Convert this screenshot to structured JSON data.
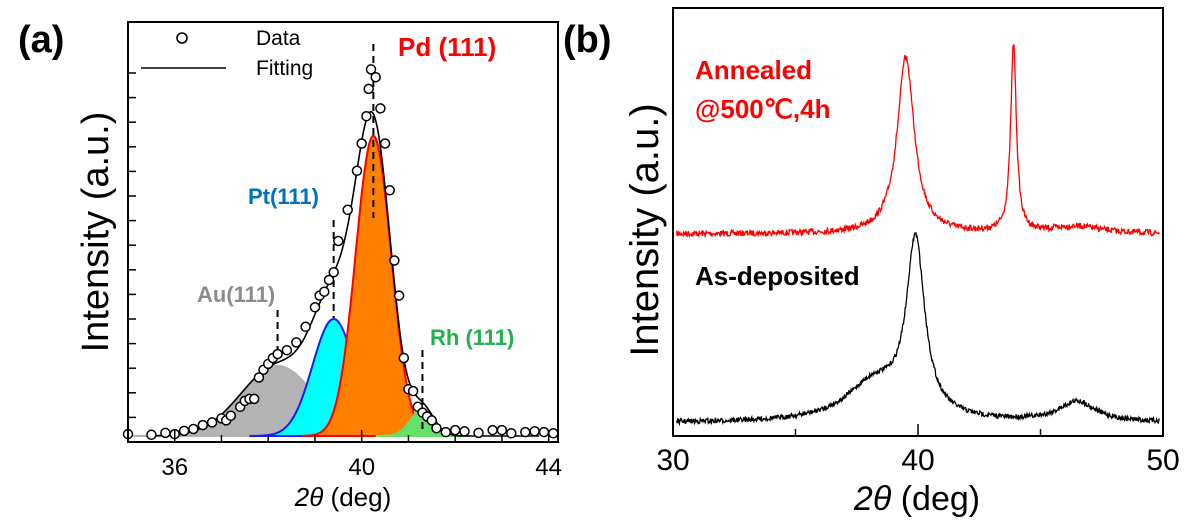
{
  "colors": {
    "au": "#b3b3b3",
    "pt": "#00ffff",
    "pt_line": "#1a1aff",
    "pd": "#ff7f00",
    "pd_line": "#ff0000",
    "rh": "#66e066",
    "annealed": "#ff0000",
    "asdeposited": "#000000",
    "au_text": "#8c8c8c",
    "pt_text": "#0070c0",
    "pd_text": "#ff0000",
    "rh_text": "#22b14c"
  },
  "chart_data": [
    {
      "type": "scatter",
      "panel_label": "(a)",
      "xlabel_sym": "2θ",
      "xlabel_unit": " (deg)",
      "ylabel": "Intensity (a.u.)",
      "xlim": [
        35.0,
        44.2
      ],
      "ylim": [
        0,
        100
      ],
      "xticks": [
        36,
        40,
        44
      ],
      "legend": {
        "data": "Data",
        "fit": "Fitting",
        "placement": "top-left"
      },
      "peaks": [
        {
          "label": "Au(111)",
          "center": 38.2,
          "amplitude": 18,
          "sigma": 0.78,
          "marker_x": 38.2
        },
        {
          "label": "Pt(111)",
          "center": 39.4,
          "amplitude": 30,
          "sigma": 0.45,
          "marker_x": 39.4
        },
        {
          "label": "Pd (111)",
          "center": 40.25,
          "amplitude": 77,
          "sigma": 0.38,
          "marker_x": 40.25
        },
        {
          "label": "Rh (111)",
          "center": 41.3,
          "amplitude": 7,
          "sigma": 0.25,
          "marker_x": 41.3
        }
      ],
      "data_points": [
        [
          35.0,
          0.5
        ],
        [
          35.5,
          0.3
        ],
        [
          35.8,
          0.8
        ],
        [
          36.0,
          0.5
        ],
        [
          36.2,
          1.3
        ],
        [
          36.4,
          1.8
        ],
        [
          36.6,
          2.8
        ],
        [
          36.8,
          3.5
        ],
        [
          37.0,
          4.5
        ],
        [
          37.1,
          4.0
        ],
        [
          37.2,
          5.2
        ],
        [
          37.4,
          7.5
        ],
        [
          37.5,
          9.0
        ],
        [
          37.6,
          9.5
        ],
        [
          37.7,
          9.5
        ],
        [
          37.8,
          15.0
        ],
        [
          37.9,
          17.0
        ],
        [
          38.0,
          18.5
        ],
        [
          38.1,
          20.0
        ],
        [
          38.2,
          21.0
        ],
        [
          38.4,
          22.0
        ],
        [
          38.6,
          24.0
        ],
        [
          38.8,
          28.0
        ],
        [
          39.0,
          33.0
        ],
        [
          39.1,
          36.0
        ],
        [
          39.2,
          37.0
        ],
        [
          39.3,
          40.0
        ],
        [
          39.4,
          42.0
        ],
        [
          39.5,
          50.0
        ],
        [
          39.7,
          58.0
        ],
        [
          39.9,
          68.0
        ],
        [
          40.0,
          75.0
        ],
        [
          40.1,
          82.0
        ],
        [
          40.15,
          89.0
        ],
        [
          40.2,
          94.0
        ],
        [
          40.3,
          92.0
        ],
        [
          40.4,
          84.0
        ],
        [
          40.5,
          75.0
        ],
        [
          40.6,
          63.0
        ],
        [
          40.7,
          45.0
        ],
        [
          40.8,
          36.0
        ],
        [
          40.9,
          20.0
        ],
        [
          41.0,
          12.0
        ],
        [
          41.1,
          11.5
        ],
        [
          41.2,
          7.5
        ],
        [
          41.3,
          6.0
        ],
        [
          41.4,
          5.0
        ],
        [
          41.5,
          4.0
        ],
        [
          41.6,
          2.0
        ],
        [
          41.8,
          1.0
        ],
        [
          42.0,
          1.5
        ],
        [
          42.2,
          1.2
        ],
        [
          42.5,
          0.8
        ],
        [
          42.8,
          1.5
        ],
        [
          43.0,
          1.5
        ],
        [
          43.2,
          0.7
        ],
        [
          43.5,
          1.0
        ],
        [
          43.7,
          1.2
        ],
        [
          43.9,
          1.0
        ],
        [
          44.1,
          0.7
        ]
      ]
    },
    {
      "type": "line",
      "panel_label": "(b)",
      "xlabel_sym": "2θ",
      "xlabel_unit": " (deg)",
      "ylabel": "Intensity (a.u.)",
      "xlim": [
        30,
        50
      ],
      "xticks": [
        30,
        40,
        50
      ],
      "series": [
        {
          "name": "Annealed",
          "name_line2": "@500℃,4h",
          "baseline": 0,
          "peaks": [
            {
              "center": 39.5,
              "amplitude": 75,
              "width": 0.42
            },
            {
              "center": 43.9,
              "amplitude": 80,
              "width": 0.14
            },
            {
              "center": 46.5,
              "amplitude": 3,
              "width": 1.2
            }
          ]
        },
        {
          "name": "As-deposited",
          "baseline": 0,
          "peaks": [
            {
              "center": 39.9,
              "amplitude": 68,
              "width": 0.45
            },
            {
              "center": 38.2,
              "amplitude": 15,
              "width": 1.4
            },
            {
              "center": 46.5,
              "amplitude": 8,
              "width": 0.9
            }
          ]
        }
      ]
    }
  ]
}
